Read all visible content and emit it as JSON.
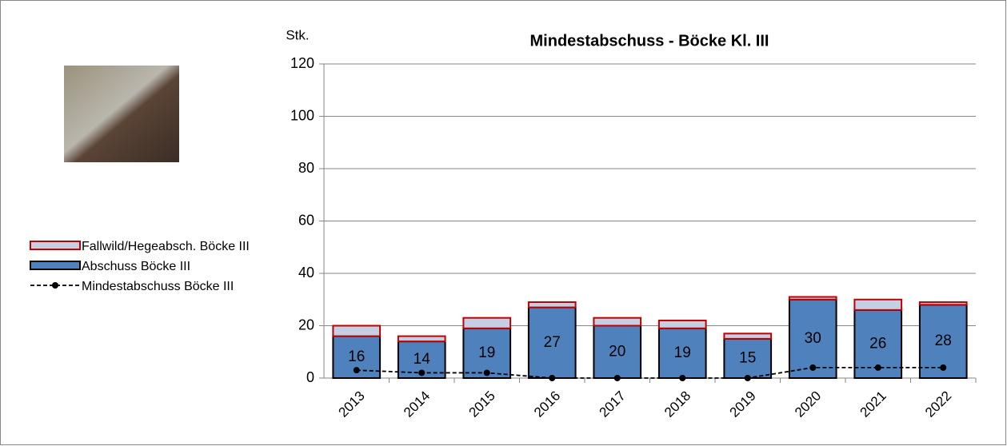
{
  "chart_data": {
    "type": "bar",
    "stacked": true,
    "title": "Mindestabschuss - Böcke  Kl. III",
    "y_label": "Stk.",
    "categories": [
      "2013",
      "2014",
      "2015",
      "2016",
      "2017",
      "2018",
      "2019",
      "2020",
      "2021",
      "2022"
    ],
    "series": [
      {
        "name": "Fallwild/Hegeabsch. Böcke III",
        "color": "#c5cfe4",
        "edge": "#c00000",
        "values": [
          4,
          2,
          4,
          2,
          3,
          3,
          2,
          1,
          4,
          1
        ]
      },
      {
        "name": "Abschuss Böcke III",
        "color": "#4f81bd",
        "edge": "#000000",
        "values": [
          16,
          14,
          19,
          27,
          20,
          19,
          15,
          30,
          26,
          28
        ],
        "show_labels": true
      },
      {
        "name": "Mindestabschuss Böcke III",
        "type": "line",
        "color": "#000000",
        "dashed": true,
        "values": [
          3,
          2,
          2,
          0,
          0,
          0,
          0,
          4,
          4,
          4
        ]
      }
    ],
    "ylim": [
      0,
      120
    ],
    "yticks": [
      0,
      20,
      40,
      60,
      80,
      100,
      120
    ],
    "grid": true
  }
}
